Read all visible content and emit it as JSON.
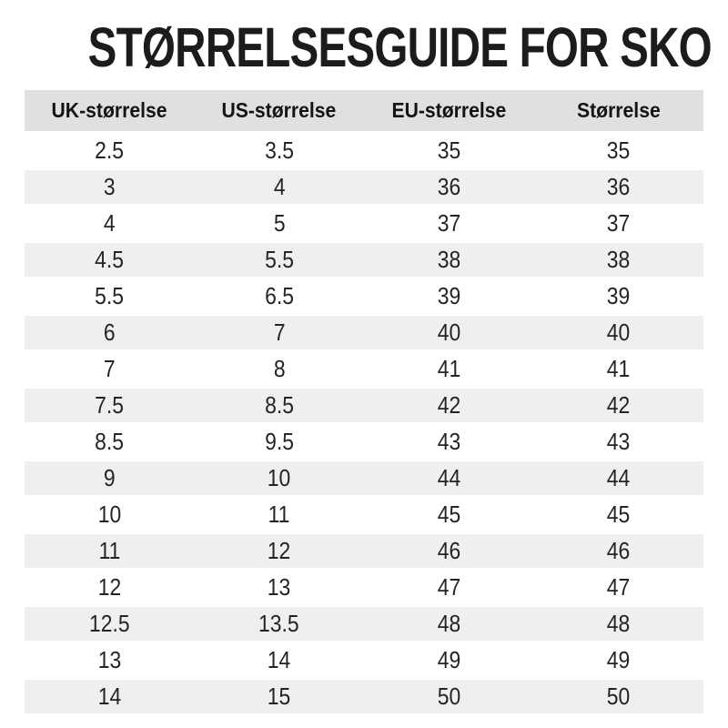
{
  "title": "STØRRELSESGUIDE FOR SKO",
  "chart_data": {
    "type": "table",
    "title": "STØRRELSESGUIDE FOR SKO",
    "columns": [
      "UK-størrelse",
      "US-størrelse",
      "EU-størrelse",
      "Størrelse"
    ],
    "rows": [
      [
        "2.5",
        "3.5",
        "35",
        "35"
      ],
      [
        "3",
        "4",
        "36",
        "36"
      ],
      [
        "4",
        "5",
        "37",
        "37"
      ],
      [
        "4.5",
        "5.5",
        "38",
        "38"
      ],
      [
        "5.5",
        "6.5",
        "39",
        "39"
      ],
      [
        "6",
        "7",
        "40",
        "40"
      ],
      [
        "7",
        "8",
        "41",
        "41"
      ],
      [
        "7.5",
        "8.5",
        "42",
        "42"
      ],
      [
        "8.5",
        "9.5",
        "43",
        "43"
      ],
      [
        "9",
        "10",
        "44",
        "44"
      ],
      [
        "10",
        "11",
        "45",
        "45"
      ],
      [
        "11",
        "12",
        "46",
        "46"
      ],
      [
        "12",
        "13",
        "47",
        "47"
      ],
      [
        "12.5",
        "13.5",
        "48",
        "48"
      ],
      [
        "13",
        "14",
        "49",
        "49"
      ],
      [
        "14",
        "15",
        "50",
        "50"
      ]
    ],
    "layout": {
      "zebra_striping": true,
      "columns_equal_width": true,
      "text_align": "center"
    }
  },
  "colors": {
    "page_bg": "#ffffff",
    "header_bg": "#e0e0e0",
    "row_alt_bg": "#efefef",
    "title_text": "#1c1c1c",
    "cell_text": "#242424"
  }
}
